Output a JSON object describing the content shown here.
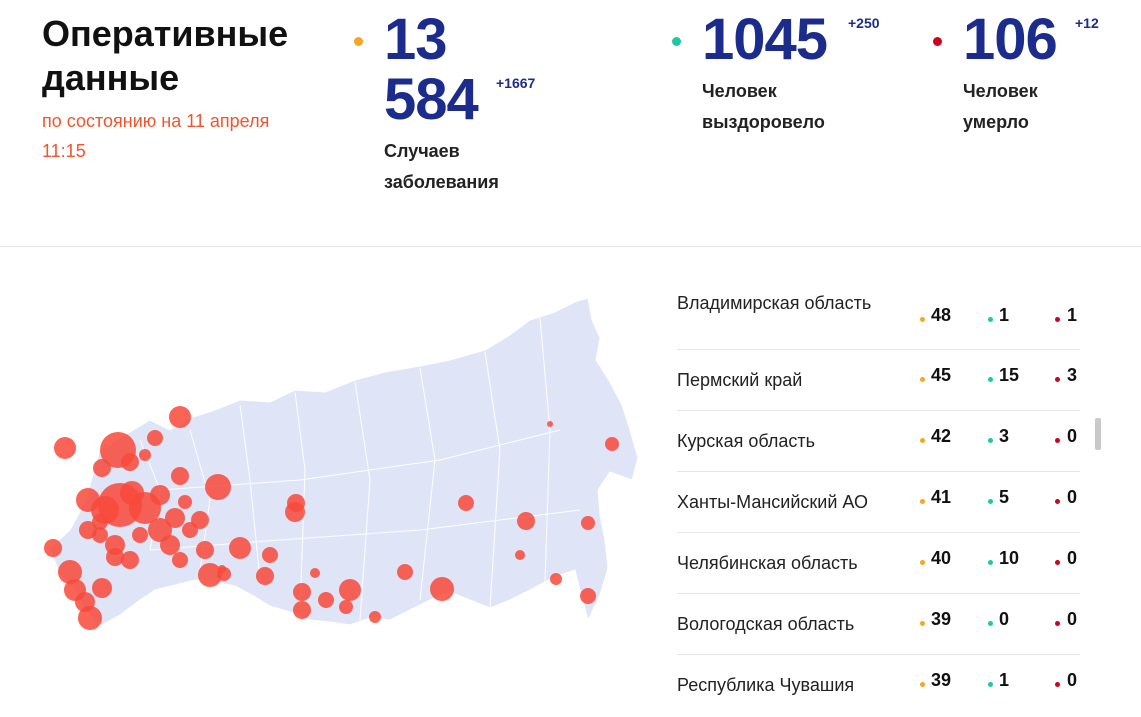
{
  "header": {
    "title": "Оперативные данные",
    "subtitle": "по состоянию на 11 апреля 11:15"
  },
  "colors": {
    "cases": "#f5a623",
    "recovered": "#1ec8a0",
    "deaths": "#d0021b",
    "numbers": "#1c2c8c",
    "accent": "#f2542d",
    "map_fill": "#dfe4f7",
    "bubble": "#f8493a"
  },
  "stats": {
    "cases": {
      "value_line1": "13",
      "value_line2": "584",
      "delta": "+1667",
      "label_line1": "Случаев",
      "label_line2": "заболевания"
    },
    "recovered": {
      "value": "1045",
      "delta": "+250",
      "label_line1": "Человек",
      "label_line2": "выздоровело"
    },
    "deaths": {
      "value": "106",
      "delta": "+12",
      "label_line1": "Человек",
      "label_line2": "умерло"
    }
  },
  "regions": [
    {
      "name": "Владимирская область",
      "cases": "48",
      "recovered": "1",
      "deaths": "1"
    },
    {
      "name": "Пермский край",
      "cases": "45",
      "recovered": "15",
      "deaths": "3"
    },
    {
      "name": "Курская область",
      "cases": "42",
      "recovered": "3",
      "deaths": "0"
    },
    {
      "name": "Ханты-Мансийский АО",
      "cases": "41",
      "recovered": "5",
      "deaths": "0"
    },
    {
      "name": "Челябинская область",
      "cases": "40",
      "recovered": "10",
      "deaths": "0"
    },
    {
      "name": "Вологодская область",
      "cases": "39",
      "recovered": "0",
      "deaths": "0"
    },
    {
      "name": "Республика Чувашия",
      "cases": "39",
      "recovered": "1",
      "deaths": "0"
    }
  ]
}
